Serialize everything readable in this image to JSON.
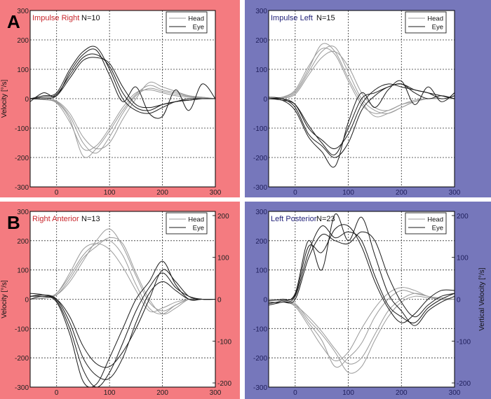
{
  "colors": {
    "panel_right_bg": "#f47b80",
    "panel_left_bg": "#7677bb",
    "head": "#9a9a9a",
    "eye": "#1a1a1a",
    "title_right": "#c8262c",
    "title_left": "#23237a"
  },
  "chart_data": [
    {
      "type": "line",
      "panel_letter": "A",
      "title": "Impulse Right",
      "n_label": "N=10",
      "ylabel": "Velocity [°/s]",
      "xlim": [
        -50,
        300
      ],
      "ylim": [
        -300,
        300
      ],
      "xticks": [
        0,
        100,
        200,
        300
      ],
      "yticks": [
        -300,
        -200,
        -100,
        0,
        100,
        200,
        300
      ],
      "grid": true,
      "legend": [
        "Head",
        "Eye"
      ],
      "legend_placement": "top-right",
      "x": [
        -50,
        -25,
        0,
        25,
        50,
        75,
        100,
        125,
        150,
        175,
        200,
        225,
        250,
        275,
        300
      ],
      "series": [
        {
          "name": "Head",
          "values": [
            0,
            -3,
            -15,
            -80,
            -170,
            -160,
            -100,
            -30,
            20,
            30,
            20,
            10,
            5,
            2,
            0
          ]
        },
        {
          "name": "Head",
          "values": [
            0,
            -2,
            -10,
            -60,
            -150,
            -185,
            -130,
            -50,
            10,
            35,
            25,
            15,
            8,
            3,
            0
          ]
        },
        {
          "name": "Head",
          "values": [
            0,
            -3,
            -12,
            -70,
            -195,
            -170,
            -110,
            -40,
            15,
            45,
            30,
            20,
            10,
            5,
            0
          ]
        },
        {
          "name": "Head",
          "values": [
            0,
            -2,
            -8,
            -50,
            -130,
            -170,
            -150,
            -70,
            0,
            55,
            40,
            25,
            10,
            5,
            0
          ]
        },
        {
          "name": "Eye",
          "values": [
            0,
            5,
            15,
            80,
            140,
            150,
            110,
            20,
            -30,
            -40,
            -20,
            -10,
            -5,
            0,
            0
          ]
        },
        {
          "name": "Eye",
          "values": [
            0,
            10,
            20,
            100,
            160,
            175,
            100,
            0,
            -40,
            -50,
            -30,
            -10,
            -5,
            0,
            0
          ]
        },
        {
          "name": "Eye",
          "values": [
            0,
            0,
            10,
            70,
            130,
            140,
            120,
            40,
            -20,
            -30,
            -20,
            -10,
            0,
            0,
            0
          ]
        },
        {
          "name": "Eye",
          "values": [
            -10,
            20,
            10,
            90,
            150,
            165,
            80,
            -10,
            40,
            -50,
            -60,
            30,
            -40,
            50,
            0
          ]
        }
      ]
    },
    {
      "type": "line",
      "title": "Impulse Left",
      "n_label": "N=15",
      "xlim": [
        -50,
        300
      ],
      "ylim": [
        -300,
        300
      ],
      "xticks": [
        0,
        100,
        200,
        300
      ],
      "yticks": [
        -300,
        -200,
        -100,
        0,
        100,
        200,
        300
      ],
      "grid": true,
      "legend": [
        "Head",
        "Eye"
      ],
      "legend_placement": "top-right",
      "x": [
        -50,
        -25,
        0,
        25,
        50,
        75,
        100,
        125,
        150,
        175,
        200,
        225,
        250,
        275,
        300
      ],
      "series": [
        {
          "name": "Head",
          "values": [
            0,
            5,
            30,
            110,
            170,
            150,
            60,
            -20,
            -50,
            -40,
            -20,
            -5,
            0,
            0,
            0
          ]
        },
        {
          "name": "Head",
          "values": [
            0,
            3,
            20,
            90,
            160,
            175,
            90,
            0,
            -40,
            -50,
            -30,
            -10,
            0,
            0,
            0
          ]
        },
        {
          "name": "Head",
          "values": [
            0,
            5,
            25,
            100,
            185,
            160,
            70,
            -10,
            -60,
            -50,
            -30,
            -10,
            0,
            0,
            0
          ]
        },
        {
          "name": "Head",
          "values": [
            0,
            2,
            15,
            80,
            140,
            160,
            110,
            20,
            -30,
            -40,
            -20,
            -10,
            0,
            0,
            0
          ]
        },
        {
          "name": "Eye",
          "values": [
            0,
            0,
            -20,
            -100,
            -140,
            -170,
            -120,
            -20,
            30,
            50,
            40,
            30,
            20,
            10,
            0
          ]
        },
        {
          "name": "Eye",
          "values": [
            5,
            0,
            -30,
            -120,
            -160,
            -200,
            -150,
            -40,
            10,
            40,
            50,
            30,
            20,
            0,
            10
          ]
        },
        {
          "name": "Eye",
          "values": [
            0,
            -5,
            -20,
            -90,
            -150,
            -190,
            -100,
            0,
            20,
            40,
            50,
            20,
            0,
            10,
            0
          ]
        },
        {
          "name": "Eye",
          "values": [
            0,
            -5,
            -40,
            -130,
            -180,
            -230,
            -80,
            20,
            -30,
            30,
            60,
            -20,
            40,
            -10,
            20
          ]
        }
      ]
    },
    {
      "type": "line",
      "panel_letter": "B",
      "title": "Right Anterior",
      "n_label": "N=13",
      "ylabel": "Velocity [°/s]",
      "xlim": [
        -50,
        300
      ],
      "ylim": [
        -300,
        300
      ],
      "xticks": [
        0,
        100,
        200,
        300
      ],
      "yticks": [
        -300,
        -200,
        -100,
        0,
        100,
        200,
        300
      ],
      "y2ticks": [
        -200,
        -100,
        0,
        100,
        200
      ],
      "y2lim": [
        -210,
        210
      ],
      "grid": true,
      "legend": [
        "Head",
        "Eye"
      ],
      "legend_placement": "top-right",
      "x": [
        -50,
        -25,
        0,
        25,
        50,
        75,
        100,
        125,
        150,
        175,
        200,
        225,
        250,
        275,
        300
      ],
      "series": [
        {
          "name": "Head",
          "values": [
            0,
            5,
            20,
            80,
            150,
            190,
            200,
            150,
            50,
            -30,
            -50,
            -20,
            0,
            0,
            0
          ]
        },
        {
          "name": "Head",
          "values": [
            0,
            5,
            15,
            60,
            130,
            200,
            240,
            180,
            80,
            -10,
            -40,
            -20,
            0,
            0,
            0
          ]
        },
        {
          "name": "Head",
          "values": [
            0,
            5,
            20,
            90,
            170,
            190,
            170,
            110,
            30,
            -40,
            -30,
            -10,
            0,
            0,
            0
          ]
        },
        {
          "name": "Head",
          "values": [
            0,
            3,
            15,
            70,
            140,
            180,
            210,
            190,
            90,
            0,
            -50,
            -30,
            0,
            0,
            0
          ]
        },
        {
          "name": "Eye",
          "values": [
            10,
            15,
            0,
            -80,
            -200,
            -260,
            -270,
            -200,
            -80,
            20,
            60,
            30,
            0,
            0,
            0
          ]
        },
        {
          "name": "Eye",
          "values": [
            20,
            15,
            -5,
            -100,
            -240,
            -300,
            -250,
            -150,
            -40,
            40,
            90,
            40,
            10,
            0,
            0
          ]
        },
        {
          "name": "Eye",
          "values": [
            10,
            10,
            0,
            -60,
            -160,
            -220,
            -230,
            -180,
            -100,
            0,
            100,
            60,
            10,
            0,
            0
          ]
        },
        {
          "name": "Eye",
          "values": [
            0,
            10,
            -10,
            -120,
            -280,
            -290,
            -200,
            -100,
            0,
            60,
            130,
            50,
            0,
            0,
            0
          ]
        }
      ]
    },
    {
      "type": "line",
      "title": "Left Posterior",
      "n_label": "N=23",
      "ylabel2": "Vertical Velocity [°/s]",
      "xlim": [
        -50,
        300
      ],
      "ylim": [
        -300,
        300
      ],
      "xticks": [
        0,
        100,
        200,
        300
      ],
      "yticks": [
        -300,
        -200,
        -100,
        0,
        100,
        200,
        300
      ],
      "y2ticks": [
        -200,
        -100,
        0,
        100,
        200
      ],
      "y2lim": [
        -210,
        210
      ],
      "grid": true,
      "legend": [
        "Head",
        "Eye"
      ],
      "legend_placement": "top-right",
      "x": [
        -50,
        -25,
        0,
        25,
        50,
        75,
        100,
        125,
        150,
        175,
        200,
        225,
        250,
        275,
        300
      ],
      "series": [
        {
          "name": "Head",
          "values": [
            0,
            -5,
            -20,
            -60,
            -110,
            -170,
            -220,
            -200,
            -120,
            -40,
            0,
            20,
            10,
            0,
            0
          ]
        },
        {
          "name": "Head",
          "values": [
            0,
            -5,
            -20,
            -80,
            -140,
            -230,
            -200,
            -150,
            -60,
            0,
            30,
            20,
            10,
            0,
            0
          ]
        },
        {
          "name": "Head",
          "values": [
            0,
            -3,
            -15,
            -70,
            -120,
            -180,
            -250,
            -230,
            -140,
            -60,
            -10,
            10,
            5,
            0,
            0
          ]
        },
        {
          "name": "Head",
          "values": [
            0,
            -5,
            -25,
            -90,
            -160,
            -210,
            -180,
            -100,
            -30,
            20,
            40,
            30,
            10,
            5,
            0
          ]
        },
        {
          "name": "Eye",
          "values": [
            -10,
            -10,
            10,
            160,
            250,
            210,
            230,
            200,
            80,
            -20,
            -60,
            -80,
            -30,
            0,
            20
          ]
        },
        {
          "name": "Eye",
          "values": [
            -15,
            -5,
            20,
            200,
            100,
            290,
            200,
            280,
            150,
            20,
            -40,
            -90,
            -40,
            -10,
            10
          ]
        },
        {
          "name": "Eye",
          "values": [
            -20,
            -10,
            0,
            140,
            220,
            200,
            190,
            230,
            200,
            80,
            -10,
            -60,
            -20,
            10,
            20
          ]
        },
        {
          "name": "Eye",
          "values": [
            -5,
            0,
            15,
            180,
            160,
            240,
            250,
            180,
            60,
            -30,
            -80,
            -50,
            0,
            30,
            30
          ]
        }
      ]
    }
  ]
}
